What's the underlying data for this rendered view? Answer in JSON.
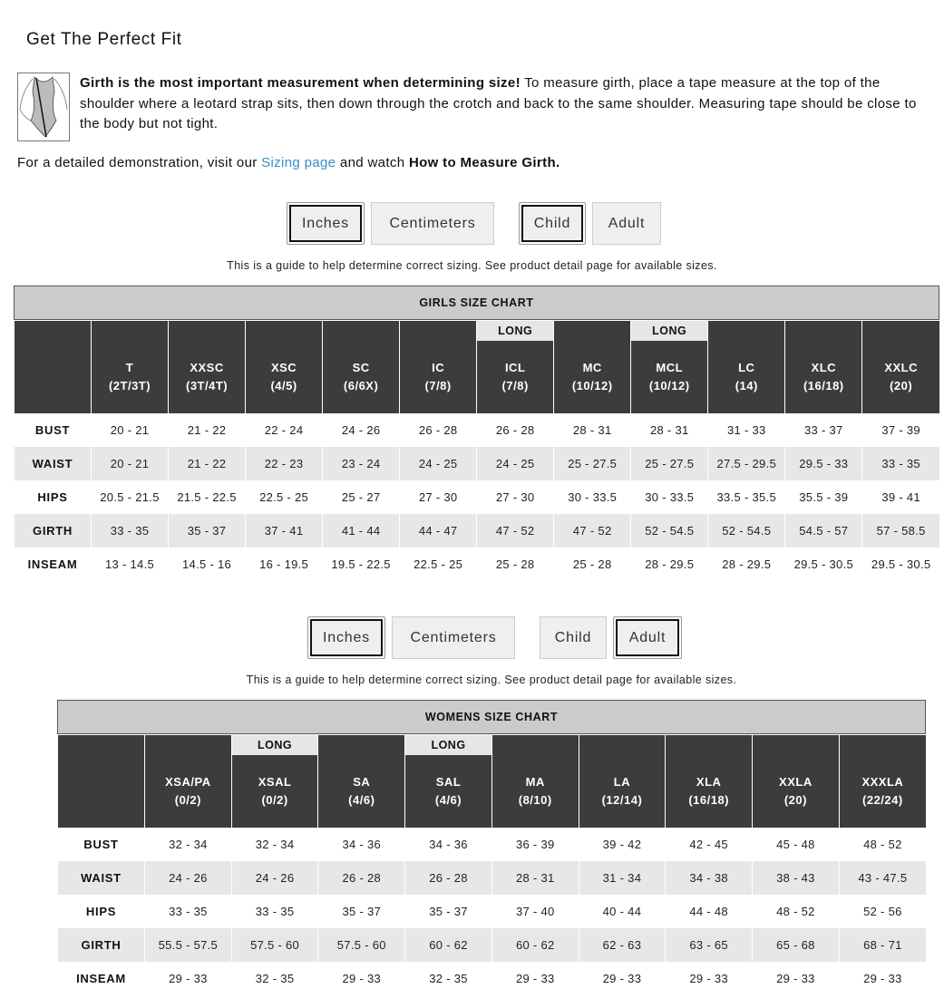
{
  "title": "Get The Perfect Fit",
  "intro": {
    "bold": "Girth is the most important measurement when determining size!",
    "text": " To measure girth, place a tape measure at the top of the shoulder where a leotard strap sits, then down through the crotch and back to the same shoulder. Measuring tape should be close to the body but not tight."
  },
  "demo": {
    "prefix": "For a detailed demonstration, visit our ",
    "link": "Sizing page",
    "middle": " and watch ",
    "bold": "How to Measure Girth."
  },
  "guide": "This is a guide to help determine correct sizing. See product detail page for available sizes.",
  "toggles": {
    "inches": "Inches",
    "centimeters": "Centimeters",
    "child": "Child",
    "adult": "Adult"
  },
  "girls_toggle_state": {
    "unit": "Inches",
    "group": "Child"
  },
  "womens_toggle_state": {
    "unit": "Inches",
    "group": "Adult"
  },
  "colors": {
    "header": "#3c3c3c",
    "title_bar": "#cbcbcb",
    "shade": "#e8e7e6",
    "link": "#3a8dc5"
  },
  "row_labels": [
    "BUST",
    "WAIST",
    "HIPS",
    "GIRTH",
    "INSEAM"
  ],
  "long_label": "LONG",
  "girls": {
    "title": "GIRLS SIZE CHART",
    "columns": [
      {
        "size": "T",
        "range": "(2T/3T)"
      },
      {
        "size": "XXSC",
        "range": "(3T/4T)"
      },
      {
        "size": "XSC",
        "range": "(4/5)"
      },
      {
        "size": "SC",
        "range": "(6/6X)"
      },
      {
        "size": "IC",
        "range": "(7/8)"
      },
      {
        "size": "ICL",
        "range": "(7/8)",
        "long": true
      },
      {
        "size": "MC",
        "range": "(10/12)"
      },
      {
        "size": "MCL",
        "range": "(10/12)",
        "long": true
      },
      {
        "size": "LC",
        "range": "(14)"
      },
      {
        "size": "XLC",
        "range": "(16/18)"
      },
      {
        "size": "XXLC",
        "range": "(20)"
      }
    ],
    "rows": [
      [
        "20 - 21",
        "21 - 22",
        "22 - 24",
        "24 - 26",
        "26 - 28",
        "26 - 28",
        "28 - 31",
        "28 - 31",
        "31 - 33",
        "33 - 37",
        "37 - 39"
      ],
      [
        "20 - 21",
        "21 - 22",
        "22 - 23",
        "23 - 24",
        "24 - 25",
        "24 - 25",
        "25 - 27.5",
        "25 - 27.5",
        "27.5 - 29.5",
        "29.5 - 33",
        "33 - 35"
      ],
      [
        "20.5 - 21.5",
        "21.5 - 22.5",
        "22.5 - 25",
        "25 - 27",
        "27 - 30",
        "27 - 30",
        "30 - 33.5",
        "30 - 33.5",
        "33.5 - 35.5",
        "35.5 - 39",
        "39 - 41"
      ],
      [
        "33 - 35",
        "35 - 37",
        "37 - 41",
        "41 - 44",
        "44 - 47",
        "47 - 52",
        "47 - 52",
        "52 - 54.5",
        "52 - 54.5",
        "54.5 - 57",
        "57 - 58.5"
      ],
      [
        "13 - 14.5",
        "14.5 - 16",
        "16 - 19.5",
        "19.5 - 22.5",
        "22.5 - 25",
        "25 - 28",
        "25 - 28",
        "28 - 29.5",
        "28 - 29.5",
        "29.5 - 30.5",
        "29.5 - 30.5"
      ]
    ]
  },
  "womens": {
    "title": "WOMENS SIZE CHART",
    "columns": [
      {
        "size": "XSA/PA",
        "range": "(0/2)"
      },
      {
        "size": "XSAL",
        "range": "(0/2)",
        "long": true
      },
      {
        "size": "SA",
        "range": "(4/6)"
      },
      {
        "size": "SAL",
        "range": "(4/6)",
        "long": true
      },
      {
        "size": "MA",
        "range": "(8/10)"
      },
      {
        "size": "LA",
        "range": "(12/14)"
      },
      {
        "size": "XLA",
        "range": "(16/18)"
      },
      {
        "size": "XXLA",
        "range": "(20)"
      },
      {
        "size": "XXXLA",
        "range": "(22/24)"
      }
    ],
    "rows": [
      [
        "32 - 34",
        "32 - 34",
        "34 - 36",
        "34 - 36",
        "36 - 39",
        "39 - 42",
        "42 - 45",
        "45 - 48",
        "48 - 52"
      ],
      [
        "24 - 26",
        "24 - 26",
        "26 - 28",
        "26 - 28",
        "28 - 31",
        "31 - 34",
        "34 - 38",
        "38 - 43",
        "43 - 47.5"
      ],
      [
        "33 - 35",
        "33 - 35",
        "35 - 37",
        "35 - 37",
        "37 - 40",
        "40 - 44",
        "44 - 48",
        "48 - 52",
        "52 - 56"
      ],
      [
        "55.5 - 57.5",
        "57.5 - 60",
        "57.5 - 60",
        "60 - 62",
        "60 - 62",
        "62 - 63",
        "63 - 65",
        "65 - 68",
        "68 - 71"
      ],
      [
        "29 - 33",
        "32 - 35",
        "29 - 33",
        "32 - 35",
        "29 - 33",
        "29 - 33",
        "29 - 33",
        "29 - 33",
        "29 - 33"
      ]
    ]
  }
}
